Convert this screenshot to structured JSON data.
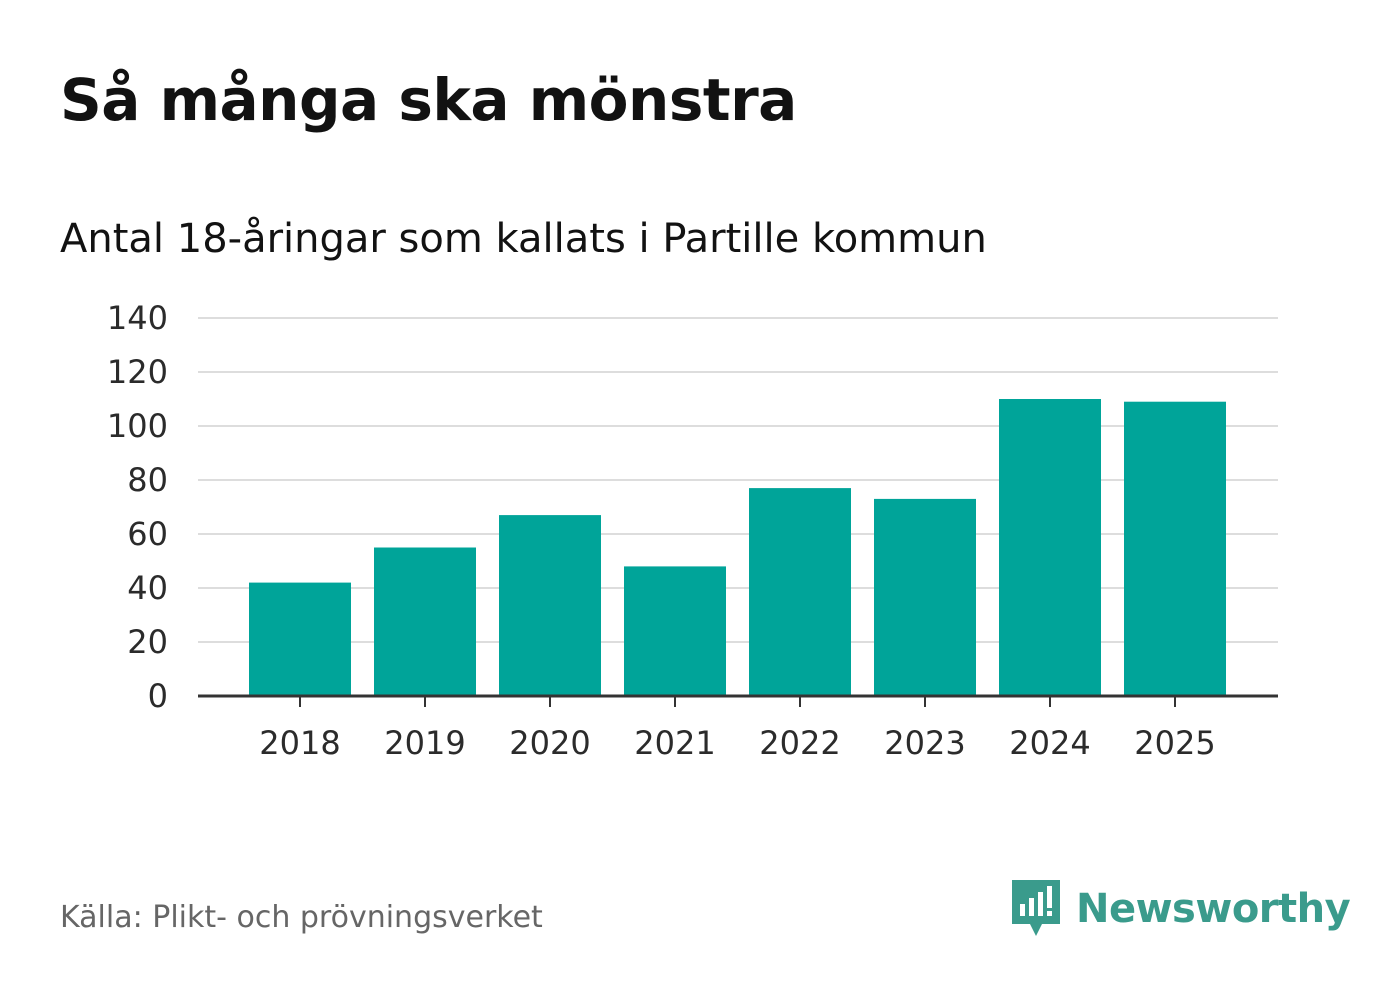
{
  "title": "Så många ska mönstra",
  "subtitle": "Antal 18-åringar som kallats i Partille kommun",
  "source": "Källa: Plikt- och prövningsverket",
  "brand": {
    "name": "Newsworthy",
    "icon": "newsworthy-logo-icon",
    "color": "#3a9b8c"
  },
  "chart_data": {
    "type": "bar",
    "title": "Så många ska mönstra",
    "subtitle": "Antal 18-åringar som kallats i Partille kommun",
    "categories": [
      "2018",
      "2019",
      "2020",
      "2021",
      "2022",
      "2023",
      "2024",
      "2025"
    ],
    "values": [
      42,
      55,
      67,
      48,
      77,
      73,
      110,
      109
    ],
    "xlabel": "",
    "ylabel": "",
    "ylim": [
      0,
      140
    ],
    "yticks": [
      0,
      20,
      40,
      60,
      80,
      100,
      120,
      140
    ],
    "grid": true,
    "bar_color": "#00a499",
    "grid_color": "#dddddd",
    "axis_color": "#333333"
  }
}
